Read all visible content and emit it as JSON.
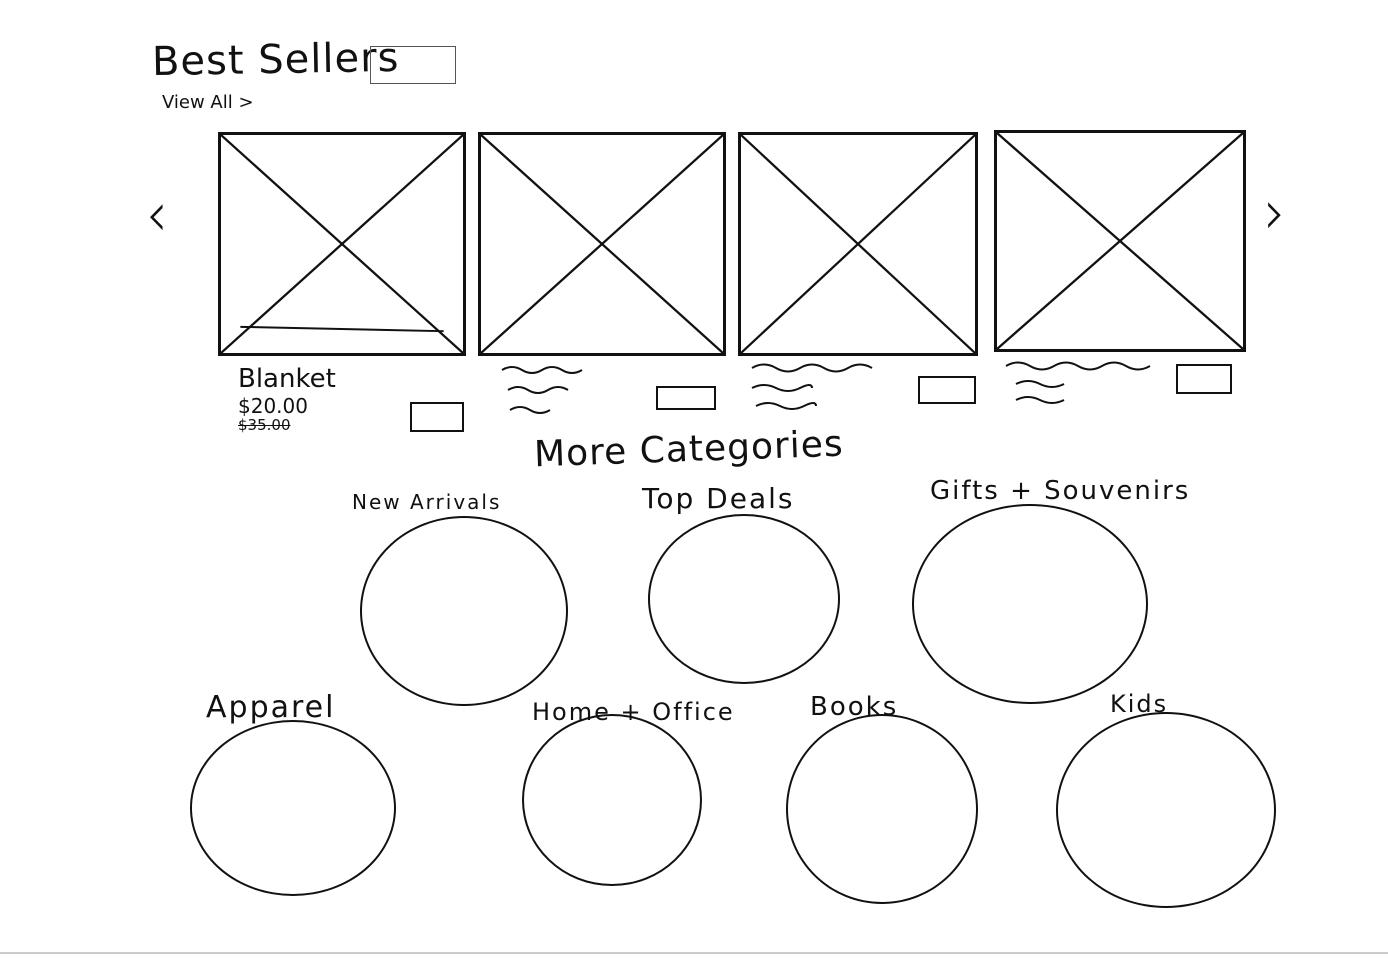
{
  "best_sellers": {
    "title": "Best Sellers",
    "view_all": "View All >"
  },
  "carousel": {
    "prev_icon": "‹",
    "next_icon": "›"
  },
  "products": [
    {
      "name": "Blanket",
      "price": "$20.00",
      "old_price": "$35.00"
    },
    {
      "name": "",
      "price": "",
      "old_price": ""
    },
    {
      "name": "",
      "price": "",
      "old_price": ""
    },
    {
      "name": "",
      "price": "",
      "old_price": ""
    }
  ],
  "more_categories": {
    "title": "More Categories",
    "items": [
      {
        "label": "New Arrivals"
      },
      {
        "label": "Top Deals"
      },
      {
        "label": "Gifts + Souvenirs"
      },
      {
        "label": "Apparel"
      },
      {
        "label": "Home + Office"
      },
      {
        "label": "Books"
      },
      {
        "label": "Kids"
      }
    ]
  },
  "colors": {
    "ink": "#111111",
    "paper": "#ffffff"
  }
}
